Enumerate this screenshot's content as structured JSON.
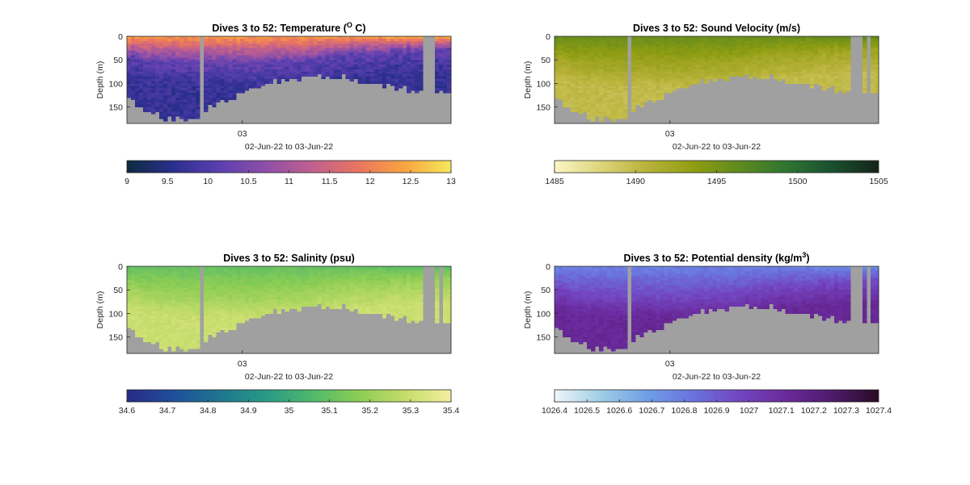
{
  "chart_data": [
    {
      "type": "heatmap",
      "title": "Dives 3 to 52: Temperature (",
      "title_super": "O",
      "title_tail": " C)",
      "ylabel": "Depth (m)",
      "xlabel": "02-Jun-22 to 03-Jun-22",
      "x_ticks": [
        "03"
      ],
      "y_ticks": [
        "0",
        "50",
        "100",
        "150"
      ],
      "ylim": [
        185,
        0
      ],
      "colormap": [
        "#0c2b3f",
        "#2b2f8e",
        "#5b3fb0",
        "#8f4fa8",
        "#c0608e",
        "#e97560",
        "#f8a540",
        "#f5e95a"
      ],
      "colorbar_ticks": [
        "9",
        "9.5",
        "10",
        "10.5",
        "11",
        "11.5",
        "12",
        "12.5",
        "13"
      ],
      "clim": [
        9,
        13
      ],
      "profile": {
        "surface": 12.3,
        "thermocline": 10.2,
        "deep": 9.7
      }
    },
    {
      "type": "heatmap",
      "title": "Dives 3 to 52: Sound Velocity (m/s)",
      "ylabel": "Depth (m)",
      "xlabel": "02-Jun-22 to 03-Jun-22",
      "x_ticks": [
        "03"
      ],
      "y_ticks": [
        "0",
        "50",
        "100",
        "150"
      ],
      "ylim": [
        185,
        0
      ],
      "colormap": [
        "#fbf6c6",
        "#ddd47a",
        "#b8b23a",
        "#8f9d12",
        "#5f8a1e",
        "#2f7532",
        "#1a5030",
        "#112417"
      ],
      "colorbar_ticks": [
        "1485",
        "1490",
        "1495",
        "1500",
        "1505"
      ],
      "clim": [
        1485,
        1505
      ],
      "profile": {
        "surface": 1495.8,
        "thermocline": 1492.5,
        "deep": 1490.0
      }
    },
    {
      "type": "heatmap",
      "title": "Dives 3 to 52: Salinity (psu)",
      "ylabel": "Depth (m)",
      "xlabel": "02-Jun-22 to 03-Jun-22",
      "x_ticks": [
        "03"
      ],
      "y_ticks": [
        "0",
        "50",
        "100",
        "150"
      ],
      "ylim": [
        185,
        0
      ],
      "colormap": [
        "#282a82",
        "#1f4f9a",
        "#1e7590",
        "#299a85",
        "#4fb96c",
        "#8ccd54",
        "#c4dc6a",
        "#f5ef9f"
      ],
      "colorbar_ticks": [
        "34.6",
        "34.7",
        "34.8",
        "34.9",
        "35",
        "35.1",
        "35.2",
        "35.3",
        "35.4"
      ],
      "clim": [
        34.6,
        35.4
      ],
      "profile": {
        "surface": 35.1,
        "thermocline": 35.2,
        "deep": 35.3
      }
    },
    {
      "type": "heatmap",
      "title": "Dives 3 to 52: Potential density (kg/m",
      "title_super": "3",
      "title_tail": ")",
      "ylabel": "Depth (m)",
      "xlabel": "02-Jun-22 to 03-Jun-22",
      "x_ticks": [
        "03"
      ],
      "y_ticks": [
        "0",
        "50",
        "100",
        "150"
      ],
      "ylim": [
        185,
        0
      ],
      "colormap": [
        "#eef6f8",
        "#9fcde6",
        "#6f9fe6",
        "#6a72dd",
        "#7345c0",
        "#6a2a9c",
        "#4e1b6a",
        "#2b0a24"
      ],
      "colorbar_ticks": [
        "1026.4",
        "1026.5",
        "1026.6",
        "1026.7",
        "1026.8",
        "1026.9",
        "1027",
        "1027.1",
        "1027.2",
        "1027.3",
        "1027.4"
      ],
      "clim": [
        1026.4,
        1027.4
      ],
      "profile": {
        "surface": 1026.78,
        "thermocline": 1026.95,
        "deep": 1027.13
      }
    }
  ]
}
